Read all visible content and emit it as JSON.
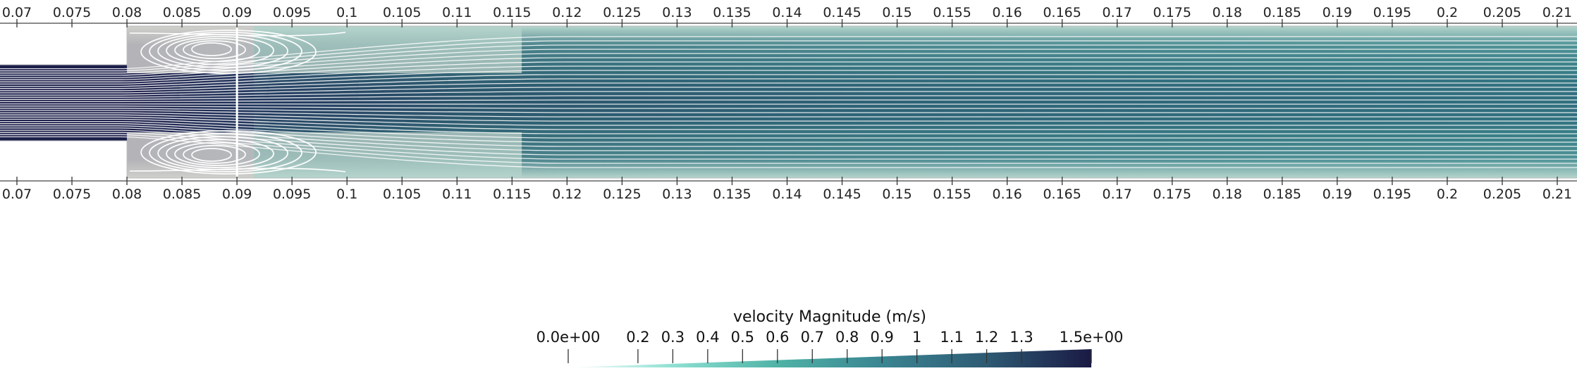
{
  "axis": {
    "x_min": 0.07,
    "x_max": 0.21,
    "ticks": [
      0.07,
      0.075,
      0.08,
      0.085,
      0.09,
      0.095,
      0.1,
      0.105,
      0.11,
      0.115,
      0.12,
      0.125,
      0.13,
      0.135,
      0.14,
      0.145,
      0.15,
      0.155,
      0.16,
      0.165,
      0.17,
      0.175,
      0.18,
      0.185,
      0.19,
      0.195,
      0.2,
      0.205,
      0.21
    ],
    "tick_labels": [
      "0.07",
      "0.075",
      "0.08",
      "0.085",
      "0.09",
      "0.095",
      "0.1",
      "0.105",
      "0.11",
      "0.115",
      "0.12",
      "0.125",
      "0.13",
      "0.135",
      "0.14",
      "0.145",
      "0.15",
      "0.155",
      "0.16",
      "0.165",
      "0.17",
      "0.175",
      "0.18",
      "0.185",
      "0.19",
      "0.195",
      "0.2",
      "0.205",
      "0.21"
    ]
  },
  "geometry": {
    "step_x": 0.08,
    "probe_x": 0.09
  },
  "colorbar": {
    "title": "velocity Magnitude (m/s)",
    "min": 0,
    "max": 1.5,
    "min_label": "0.0e+00",
    "max_label": "1.5e+00",
    "ticks": [
      0.2,
      0.3,
      0.4,
      0.5,
      0.6,
      0.7,
      0.8,
      0.9,
      1,
      1.1,
      1.2,
      1.3
    ],
    "tick_labels": [
      "0.2",
      "0.3",
      "0.4",
      "0.5",
      "0.6",
      "0.7",
      "0.8",
      "0.9",
      "1",
      "1.1",
      "1.2",
      "1.3"
    ],
    "colors": [
      "#ffffff",
      "#8ee0d2",
      "#4fb3a6",
      "#3a8592",
      "#2e5a73",
      "#1a1a44"
    ]
  },
  "field": {
    "inlet_core_color": "#1c1f4a",
    "outlet_core_color": "#2e6276",
    "wall_color": "#cfcfcb",
    "streamline_color": "#ffffff",
    "recirculation_zones": 2
  }
}
